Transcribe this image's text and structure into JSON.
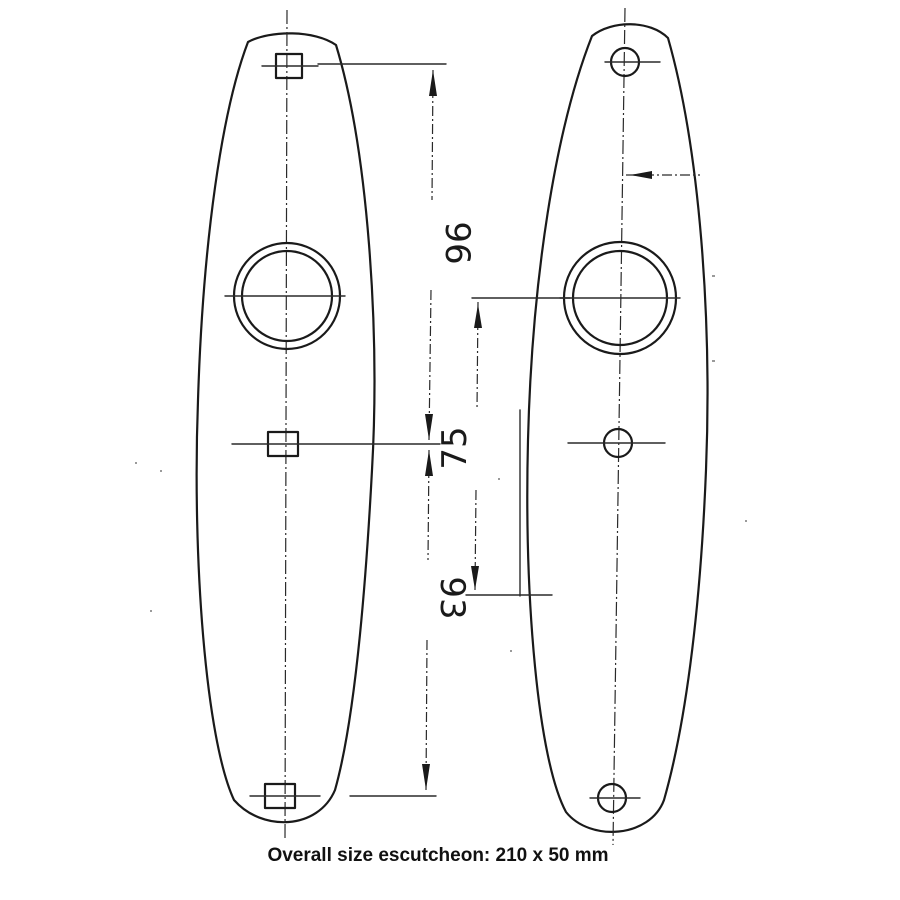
{
  "dimensions": {
    "upper": "96",
    "lower": "93",
    "right": "75"
  },
  "caption": "Overall size escutcheon: 210 x 50 mm"
}
